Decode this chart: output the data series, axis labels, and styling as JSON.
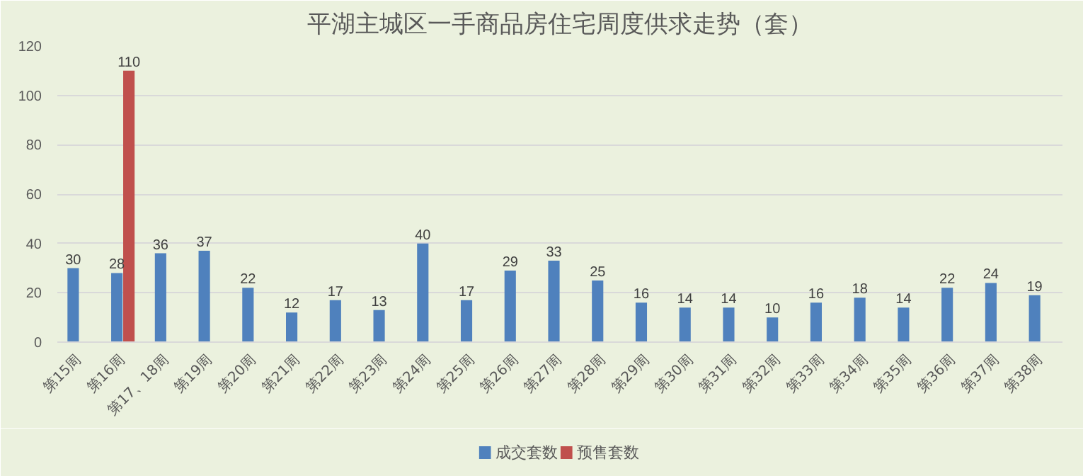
{
  "chart_data": {
    "type": "bar",
    "title": "平湖主城区一手商品房住宅周度供求走势（套）",
    "categories": [
      "第15周",
      "第16周",
      "第17、18周",
      "第19周",
      "第20周",
      "第21周",
      "第22周",
      "第23周",
      "第24周",
      "第25周",
      "第26周",
      "第27周",
      "第28周",
      "第29周",
      "第30周",
      "第31周",
      "第32周",
      "第33周",
      "第34周",
      "第35周",
      "第36周",
      "第37周",
      "第38周"
    ],
    "series": [
      {
        "name": "成交套数",
        "color": "#4f81bd",
        "values": [
          30,
          28,
          36,
          37,
          22,
          12,
          17,
          13,
          40,
          17,
          29,
          33,
          25,
          16,
          14,
          14,
          10,
          16,
          18,
          14,
          22,
          24,
          19
        ]
      },
      {
        "name": "预售套数",
        "color": "#c0504d",
        "values": [
          null,
          110,
          null,
          null,
          null,
          null,
          null,
          null,
          null,
          null,
          null,
          null,
          null,
          null,
          null,
          null,
          null,
          null,
          null,
          null,
          null,
          null,
          null
        ]
      }
    ],
    "ylim": [
      0,
      120
    ],
    "yticks": [
      0,
      20,
      40,
      60,
      80,
      100,
      120
    ],
    "grid": "y",
    "legend": "bottom",
    "data_labels": true
  }
}
